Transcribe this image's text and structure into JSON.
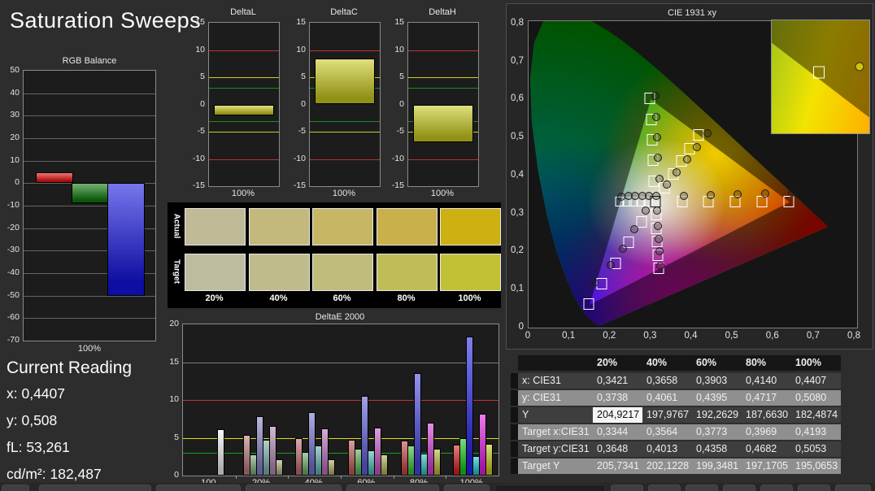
{
  "page": {
    "title": "Saturation Sweeps"
  },
  "reading": {
    "title": "Current Reading",
    "lines": [
      {
        "label": "x",
        "value": "0,4407"
      },
      {
        "label": "y",
        "value": "0,508"
      },
      {
        "label": "fL",
        "value": "53,261"
      },
      {
        "label": "cd/m²",
        "value": "182,487"
      }
    ]
  },
  "chart_data": {
    "rgb_balance": {
      "type": "bar",
      "title": "RGB Balance",
      "x_label": "100%",
      "ylim": [
        -70,
        50
      ],
      "y_ticks": [
        50,
        40,
        30,
        20,
        10,
        0,
        -10,
        -20,
        -30,
        -40,
        -50,
        -60,
        -70
      ],
      "bars": [
        {
          "name": "red",
          "value": 5,
          "color": "#e81010"
        },
        {
          "name": "green",
          "value": -9,
          "color": "#0e7a0e"
        },
        {
          "name": "blue",
          "value": -50,
          "color": "#1414e0"
        }
      ]
    },
    "delta_charts": {
      "ylim": [
        -15,
        15
      ],
      "y_ticks": [
        15,
        10,
        5,
        0,
        -5,
        -10,
        -15
      ],
      "x_label": "100%",
      "ref_lines": [
        {
          "v": 10,
          "color": "#c03030"
        },
        {
          "v": -10,
          "color": "#c03030"
        },
        {
          "v": 5,
          "color": "#cece20"
        },
        {
          "v": -5,
          "color": "#cece20"
        },
        {
          "v": 3,
          "color": "#1e8e1e"
        },
        {
          "v": -3,
          "color": "#1e8e1e"
        }
      ],
      "bar_color": "#c9c920",
      "charts": [
        {
          "title": "DeltaL",
          "value": -2
        },
        {
          "title": "DeltaC",
          "value": 8.5
        },
        {
          "title": "DeltaH",
          "value": -7
        }
      ]
    },
    "swatches": {
      "row_labels": [
        "Actual",
        "Target"
      ],
      "columns": [
        "20%",
        "40%",
        "60%",
        "80%",
        "100%"
      ],
      "actual_colors": [
        "#c0ba97",
        "#c3b97d",
        "#c7b765",
        "#cab04b",
        "#cdb012"
      ],
      "target_colors": [
        "#bdbc9f",
        "#bfbc8b",
        "#c0bc7c",
        "#bfbd58",
        "#c2c034"
      ]
    },
    "deltae": {
      "type": "bar",
      "title": "DeltaE 2000",
      "ylim": [
        0,
        20
      ],
      "y_ticks": [
        0,
        5,
        10,
        15,
        20
      ],
      "grid_ticks": [
        5,
        10,
        15
      ],
      "ref_lines": [
        {
          "v": 10,
          "color": "#c83232"
        },
        {
          "v": 5,
          "color": "#dede18"
        },
        {
          "v": 3,
          "color": "#1e9e1e"
        }
      ],
      "groups": [
        {
          "label": "100",
          "bars": [
            {
              "c": "#f0f0f0",
              "v": 6.1
            }
          ]
        },
        {
          "label": "20%",
          "bars": [
            {
              "c": "#b97c7c",
              "v": 5.4
            },
            {
              "c": "#7da87d",
              "v": 2.8
            },
            {
              "c": "#8484c6",
              "v": 7.9
            },
            {
              "c": "#7cadad",
              "v": 4.7
            },
            {
              "c": "#b288b2",
              "v": 6.6
            },
            {
              "c": "#b0b080",
              "v": 2.2
            }
          ]
        },
        {
          "label": "40%",
          "bars": [
            {
              "c": "#bc6e6e",
              "v": 4.9
            },
            {
              "c": "#6cab6c",
              "v": 3.1
            },
            {
              "c": "#7272cd",
              "v": 8.4
            },
            {
              "c": "#63b1b1",
              "v": 4.0
            },
            {
              "c": "#ba70ba",
              "v": 6.2
            },
            {
              "c": "#adad6a",
              "v": 2.1
            }
          ]
        },
        {
          "label": "60%",
          "bars": [
            {
              "c": "#c05a5a",
              "v": 4.7
            },
            {
              "c": "#55b155",
              "v": 3.6
            },
            {
              "c": "#5e5ed6",
              "v": 10.5
            },
            {
              "c": "#4bb8b8",
              "v": 3.3
            },
            {
              "c": "#c45ac4",
              "v": 6.3
            },
            {
              "c": "#b0b052",
              "v": 2.8
            }
          ]
        },
        {
          "label": "80%",
          "bars": [
            {
              "c": "#c74444",
              "v": 4.6
            },
            {
              "c": "#3dbb3d",
              "v": 4.0
            },
            {
              "c": "#4646de",
              "v": 13.5
            },
            {
              "c": "#33c0c0",
              "v": 2.9
            },
            {
              "c": "#d13cd1",
              "v": 7.0
            },
            {
              "c": "#b8b83a",
              "v": 3.5
            }
          ]
        },
        {
          "label": "100%",
          "bars": [
            {
              "c": "#d92020",
              "v": 4.1
            },
            {
              "c": "#17c517",
              "v": 5.0
            },
            {
              "c": "#2424e8",
              "v": 18.4
            },
            {
              "c": "#19c8c8",
              "v": 2.6
            },
            {
              "c": "#e01ce0",
              "v": 8.2
            },
            {
              "c": "#c6c61c",
              "v": 4.2
            }
          ]
        }
      ]
    },
    "cie": {
      "type": "scatter",
      "title": "CIE 1931 xy",
      "x_ticks": [
        "0",
        "0,1",
        "0,2",
        "0,3",
        "0,4",
        "0,5",
        "0,6",
        "0,7",
        "0,8"
      ],
      "y_ticks": [
        "0",
        "0,1",
        "0,2",
        "0,3",
        "0,4",
        "0,5",
        "0,6",
        "0,7",
        "0,8"
      ],
      "xlim": [
        0,
        0.806
      ],
      "ylim": [
        0,
        0.806
      ],
      "gamut_triangle": {
        "r": [
          0.64,
          0.33
        ],
        "g": [
          0.3,
          0.6
        ],
        "b": [
          0.15,
          0.06
        ]
      },
      "white_point": {
        "target": [
          0.3127,
          0.329
        ],
        "measured": [
          0.316,
          0.345
        ]
      },
      "sweeps": [
        {
          "name": "red",
          "sq": 11,
          "targets": [
            [
              0.3782,
              0.3292
            ],
            [
              0.4436,
              0.3294
            ],
            [
              0.5091,
              0.3296
            ],
            [
              0.5745,
              0.3298
            ],
            [
              0.64,
              0.33
            ]
          ],
          "measured": [
            [
              0.384,
              0.345
            ],
            [
              0.448,
              0.347
            ],
            [
              0.515,
              0.349
            ],
            [
              0.583,
              0.351
            ],
            [
              0.648,
              0.353
            ]
          ]
        },
        {
          "name": "green",
          "sq": 11,
          "targets": [
            [
              0.3102,
              0.3832
            ],
            [
              0.3076,
              0.4374
            ],
            [
              0.3051,
              0.4916
            ],
            [
              0.3025,
              0.5458
            ],
            [
              0.3,
              0.6
            ]
          ],
          "measured": [
            [
              0.323,
              0.39
            ],
            [
              0.32,
              0.445
            ],
            [
              0.318,
              0.498
            ],
            [
              0.316,
              0.552
            ],
            [
              0.314,
              0.608
            ]
          ]
        },
        {
          "name": "blue",
          "sq": 11,
          "targets": [
            [
              0.2802,
              0.2752
            ],
            [
              0.2476,
              0.2214
            ],
            [
              0.2151,
              0.1676
            ],
            [
              0.1825,
              0.1138
            ],
            [
              0.15,
              0.06
            ]
          ],
          "measured": [
            [
              0.29,
              0.305
            ],
            [
              0.262,
              0.256
            ],
            [
              0.233,
              0.206
            ],
            [
              0.203,
              0.162
            ],
            [
              0.164,
              0.115
            ]
          ]
        },
        {
          "name": "cyan",
          "sq": 9,
          "targets": [
            [
              0.2952,
              0.329
            ],
            [
              0.2776,
              0.329
            ],
            [
              0.2601,
              0.329
            ],
            [
              0.2425,
              0.329
            ],
            [
              0.225,
              0.329
            ]
          ],
          "measured": [
            [
              0.298,
              0.345
            ],
            [
              0.281,
              0.345
            ],
            [
              0.264,
              0.344
            ],
            [
              0.247,
              0.344
            ],
            [
              0.23,
              0.343
            ]
          ]
        },
        {
          "name": "magenta",
          "sq": 11,
          "targets": [
            [
              0.3144,
              0.294
            ],
            [
              0.3161,
              0.2591
            ],
            [
              0.3178,
              0.2241
            ],
            [
              0.3195,
              0.1892
            ],
            [
              0.3212,
              0.1542
            ]
          ],
          "measured": [
            [
              0.318,
              0.305
            ],
            [
              0.32,
              0.265
            ],
            [
              0.3215,
              0.23
            ],
            [
              0.323,
              0.198
            ],
            [
              0.325,
              0.16
            ]
          ]
        },
        {
          "name": "yellow",
          "sq": 11,
          "targets": [
            [
              0.3344,
              0.3648
            ],
            [
              0.3564,
              0.4013
            ],
            [
              0.3773,
              0.4358
            ],
            [
              0.3969,
              0.4682
            ],
            [
              0.4193,
              0.5053
            ]
          ],
          "measured": [
            [
              0.3421,
              0.3738
            ],
            [
              0.3658,
              0.4061
            ],
            [
              0.3903,
              0.4395
            ],
            [
              0.414,
              0.4717
            ],
            [
              0.4407,
              0.508
            ]
          ]
        }
      ]
    },
    "table": {
      "columns": [
        "20%",
        "40%",
        "60%",
        "80%",
        "100%"
      ],
      "rows": [
        {
          "label": "x: CIE31",
          "shade": "dark",
          "values": [
            "0,3421",
            "0,3658",
            "0,3903",
            "0,4140",
            "0,4407"
          ]
        },
        {
          "label": "y: CIE31",
          "shade": "light",
          "values": [
            "0,3738",
            "0,4061",
            "0,4395",
            "0,4717",
            "0,5080"
          ]
        },
        {
          "label": "Y",
          "shade": "dark",
          "values": [
            "204,9217",
            "197,9767",
            "192,2629",
            "187,6630",
            "182,4874"
          ]
        },
        {
          "label": "Target x:CIE31",
          "shade": "light",
          "values": [
            "0,3344",
            "0,3564",
            "0,3773",
            "0,3969",
            "0,4193"
          ]
        },
        {
          "label": "Target y:CIE31",
          "shade": "dark",
          "values": [
            "0,3648",
            "0,4013",
            "0,4358",
            "0,4682",
            "0,5053"
          ]
        },
        {
          "label": "Target Y",
          "shade": "light",
          "values": [
            "205,7341",
            "202,1228",
            "199,3481",
            "197,1705",
            "195,0653"
          ]
        }
      ],
      "highlight": {
        "row": 2,
        "col": 0
      }
    }
  },
  "bottom_tabs": {
    "tabs": [
      {
        "x": 2,
        "w": 34
      },
      {
        "x": 48,
        "w": 138
      },
      {
        "x": 192,
        "w": 104
      },
      {
        "x": 302,
        "w": 118
      },
      {
        "x": 426,
        "w": 114
      },
      {
        "x": 546,
        "w": 56
      },
      {
        "x": 608,
        "w": 137,
        "dark": true
      },
      {
        "x": 751,
        "w": 40
      },
      {
        "x": 797,
        "w": 40
      },
      {
        "x": 843,
        "w": 40
      },
      {
        "x": 889,
        "w": 40
      },
      {
        "x": 935,
        "w": 40
      },
      {
        "x": 981,
        "w": 40
      },
      {
        "x": 1027,
        "w": 44
      }
    ]
  }
}
